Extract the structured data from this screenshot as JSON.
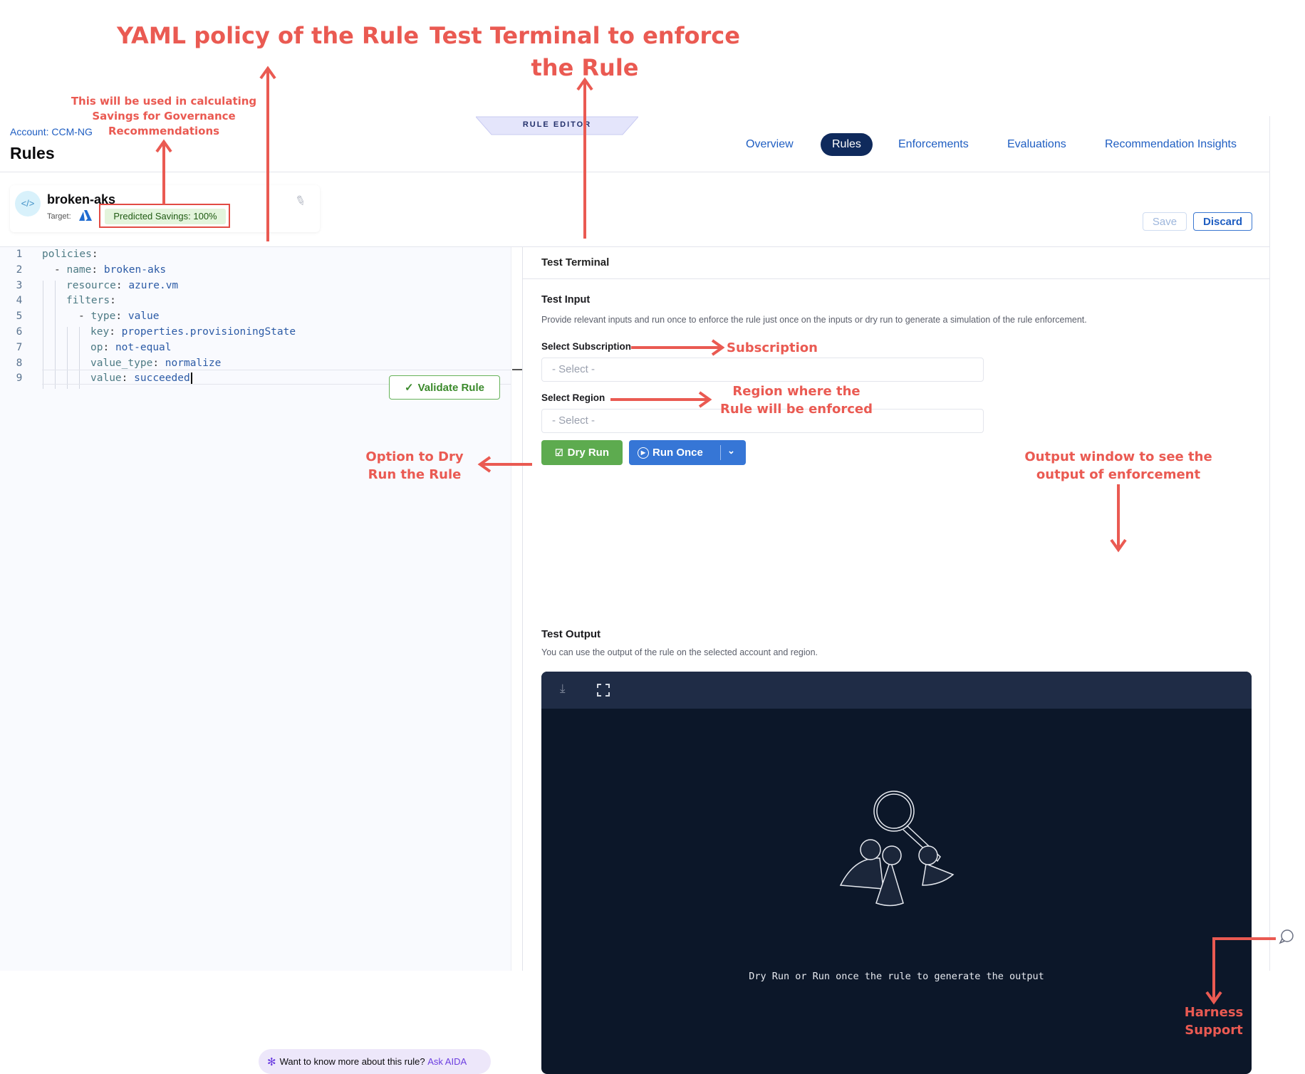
{
  "annotations": {
    "yaml_title": "YAML policy of the Rule",
    "terminal_title_1": "Test Terminal to enforce",
    "terminal_title_2": "the Rule",
    "savings_note": [
      "This will be used in calculating",
      "Savings for Governance",
      "Recommendations"
    ],
    "subscription": "Subscription",
    "region": [
      "Region where the",
      "Rule will be enforced"
    ],
    "dry_run": [
      "Option to Dry",
      "Run the Rule"
    ],
    "output": [
      "Output window to see the",
      "output of enforcement"
    ],
    "support": [
      "Harness",
      "Support"
    ],
    "color": "#ea5a52"
  },
  "header": {
    "account": "Account: CCM-NG",
    "title": "Rules",
    "editor_tab": "RULE EDITOR",
    "nav": [
      {
        "label": "Overview",
        "active": false
      },
      {
        "label": "Rules",
        "active": true
      },
      {
        "label": "Enforcements",
        "active": false
      },
      {
        "label": "Evaluations",
        "active": false
      },
      {
        "label": "Recommendation Insights",
        "active": false
      }
    ],
    "save": "Save",
    "discard": "Discard"
  },
  "rule": {
    "name": "broken-aks",
    "target_label": "Target:",
    "target_icon": "azure-icon",
    "savings": "Predicted Savings: 100%"
  },
  "editor": {
    "validate": "Validate Rule",
    "lines": [
      {
        "n": "1",
        "indent": 0,
        "dash": false,
        "key": "policies",
        "val": ""
      },
      {
        "n": "2",
        "indent": 1,
        "dash": true,
        "key": "name",
        "val": "broken-aks"
      },
      {
        "n": "3",
        "indent": 2,
        "dash": false,
        "key": "resource",
        "val": "azure.vm"
      },
      {
        "n": "4",
        "indent": 2,
        "dash": false,
        "key": "filters",
        "val": ""
      },
      {
        "n": "5",
        "indent": 3,
        "dash": true,
        "key": "type",
        "val": "value"
      },
      {
        "n": "6",
        "indent": 4,
        "dash": false,
        "key": "key",
        "val": "properties.provisioningState"
      },
      {
        "n": "7",
        "indent": 4,
        "dash": false,
        "key": "op",
        "val": "not-equal"
      },
      {
        "n": "8",
        "indent": 4,
        "dash": false,
        "key": "value_type",
        "val": "normalize"
      },
      {
        "n": "9",
        "indent": 4,
        "dash": false,
        "key": "value",
        "val": "succeeded"
      }
    ],
    "aida_text": "Want to know more about this rule?",
    "aida_link": "Ask AIDA"
  },
  "terminal": {
    "title": "Test Terminal",
    "input_title": "Test Input",
    "input_desc": "Provide relevant inputs and run once to enforce the rule just once on the inputs or dry run to generate a simulation of the rule enforcement.",
    "subscription_label": "Select Subscription",
    "subscription_placeholder": "- Select -",
    "region_label": "Select Region",
    "region_placeholder": "- Select -",
    "dry_run": "Dry Run",
    "run_once": "Run Once",
    "output_title": "Test Output",
    "output_desc": "You can use the output of the rule on the selected account and region.",
    "output_empty": "Dry Run or Run once the rule to generate the output"
  }
}
